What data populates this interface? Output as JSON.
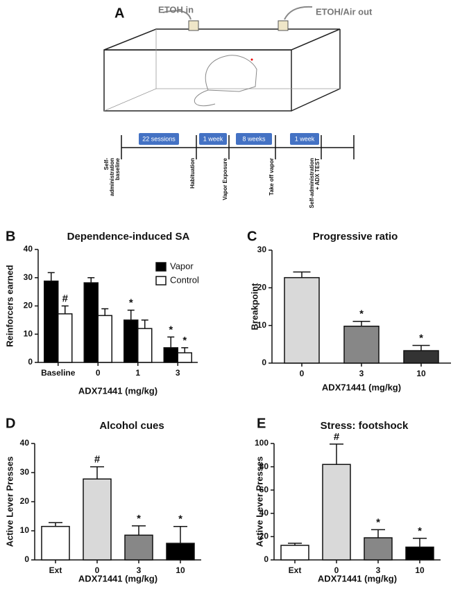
{
  "diagram": {
    "label": "A",
    "inlet": "ETOH in",
    "outlet": "ETOH/Air out",
    "timeline": {
      "boxes": [
        "22 sessions",
        "1 week",
        "8 weeks",
        "1 week"
      ],
      "events": [
        [
          "Self-",
          "administration",
          "baseline"
        ],
        [
          "Habituation"
        ],
        [
          "Vapor Exposure"
        ],
        [
          "Take off vapor"
        ],
        [
          "Self-administration",
          "+ ADX TEST"
        ]
      ]
    }
  },
  "chart_data": [
    {
      "type": "bar",
      "label": "B",
      "title": "Dependence-induced SA",
      "xlabel": "ADX71441 (mg/kg)",
      "ylabel": "Reinforcers earned",
      "categories": [
        "Baseline",
        "0",
        "1",
        "3"
      ],
      "legend": "upper right",
      "series": [
        {
          "name": "Vapor",
          "color": "#000000",
          "values": [
            28.8,
            28.2,
            15,
            5.2
          ],
          "errors": [
            3,
            1.8,
            3.5,
            3.8
          ],
          "markers": [
            null,
            null,
            "*",
            "*"
          ]
        },
        {
          "name": "Control",
          "color": "#ffffff",
          "values": [
            17.2,
            16.6,
            12,
            3.4
          ],
          "errors": [
            2.8,
            2.4,
            3,
            1.8
          ],
          "markers": [
            "#",
            null,
            null,
            "*"
          ]
        }
      ],
      "ylim": [
        0,
        40
      ],
      "yticks": [
        0,
        10,
        20,
        30,
        40
      ]
    },
    {
      "type": "bar",
      "label": "C",
      "title": "Progressive ratio",
      "xlabel": "ADX71441 (mg/kg)",
      "ylabel": "Breakpoint",
      "categories": [
        "0",
        "3",
        "10"
      ],
      "series": [
        {
          "colors": [
            "#d9d9d9",
            "#878787",
            "#333333"
          ],
          "values": [
            22.7,
            9.8,
            3.3
          ],
          "errors": [
            1.5,
            1.3,
            1.4
          ],
          "markers": [
            null,
            "*",
            "*"
          ]
        }
      ],
      "ylim": [
        0,
        30
      ],
      "yticks": [
        0,
        10,
        20,
        30
      ]
    },
    {
      "type": "bar",
      "label": "D",
      "title": "Alcohol cues",
      "xlabel": "ADX71441 (mg/kg)",
      "ylabel": "Active Lever Presses",
      "categories": [
        "Ext",
        "0",
        "3",
        "10"
      ],
      "series": [
        {
          "colors": [
            "#ffffff",
            "#d9d9d9",
            "#878787",
            "#000000"
          ],
          "values": [
            11.5,
            27.8,
            8.5,
            5.7
          ],
          "errors": [
            1.3,
            4.2,
            3.2,
            5.8
          ],
          "markers": [
            null,
            "#",
            "*",
            "*"
          ]
        }
      ],
      "ylim": [
        0,
        40
      ],
      "yticks": [
        0,
        10,
        20,
        30,
        40
      ]
    },
    {
      "type": "bar",
      "label": "E",
      "title": "Stress: footshock",
      "xlabel": "ADX71441 (mg/kg)",
      "ylabel": "Active Lever Presses",
      "categories": [
        "Ext",
        "0",
        "3",
        "10"
      ],
      "series": [
        {
          "colors": [
            "#ffffff",
            "#d9d9d9",
            "#878787",
            "#000000"
          ],
          "values": [
            12.5,
            82,
            19,
            11
          ],
          "errors": [
            1.8,
            17.5,
            7,
            7.5
          ],
          "markers": [
            null,
            "#",
            "*",
            "*"
          ]
        }
      ],
      "ylim": [
        0,
        100
      ],
      "yticks": [
        0,
        20,
        40,
        60,
        80,
        100
      ]
    }
  ]
}
